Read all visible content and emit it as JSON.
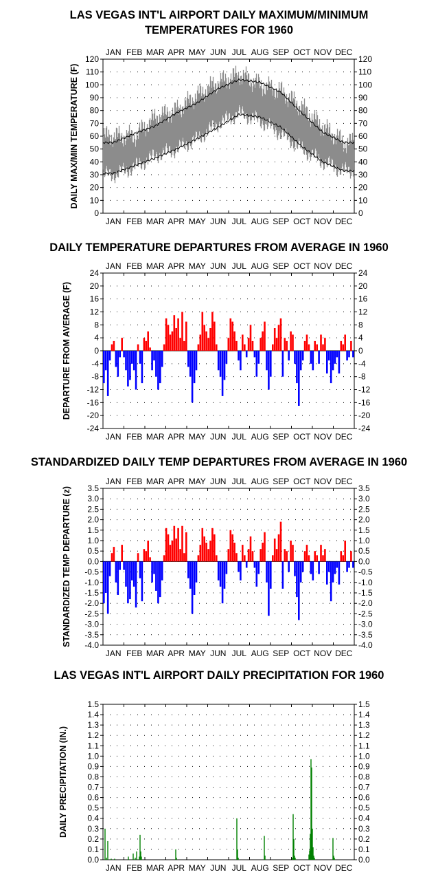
{
  "months": [
    "JAN",
    "FEB",
    "MAR",
    "APR",
    "MAY",
    "JUN",
    "JUL",
    "AUG",
    "SEP",
    "OCT",
    "NOV",
    "DEC"
  ],
  "panels": {
    "temps": {
      "title_line1": "LAS VEGAS INT'L AIRPORT DAILY MAXIMUM/MINIMUM",
      "title_line2": "TEMPERATURES FOR 1960",
      "ylabel": "DAILY MAX/MIN TEMPERATURE (F)"
    },
    "departures": {
      "title": "DAILY TEMPERATURE DEPARTURES FROM AVERAGE IN 1960",
      "ylabel": "DEPARTURE FROM AVERAGE (F)"
    },
    "standardized": {
      "title": "STANDARDIZED DAILY TEMP DEPARTURES FROM AVERAGE IN 1960",
      "ylabel": "STANDARDIZED TEMP DEPARTURE (z)"
    },
    "precip": {
      "title": "LAS VEGAS INT'L AIRPORT DAILY PRECIPITATION FOR 1960",
      "ylabel": "DAILY PRECIPITATION (IN.)"
    }
  },
  "colors": {
    "range": "#8c8c8c",
    "normal_line": "#000000",
    "positive": "#ff0000",
    "negative": "#0000ff",
    "precip": "#008000",
    "grid": "#000000"
  },
  "chart_data": [
    {
      "type": "area",
      "title": "LAS VEGAS INT'L AIRPORT DAILY MAXIMUM/MINIMUM TEMPERATURES FOR 1960",
      "ylabel": "DAILY MAX/MIN TEMPERATURE (F)",
      "ylim": [
        0,
        120
      ],
      "yticks": [
        0,
        10,
        20,
        30,
        40,
        50,
        60,
        70,
        80,
        90,
        100,
        110,
        120
      ],
      "x_unit": "month (monthly approximations)",
      "categories": [
        "JAN",
        "FEB",
        "MAR",
        "APR",
        "MAY",
        "JUN",
        "JUL",
        "AUG",
        "SEP",
        "OCT",
        "NOV",
        "DEC"
      ],
      "series": [
        {
          "values": [
            55,
            62,
            68,
            78,
            86,
            97,
            104,
            102,
            94,
            78,
            63,
            55
          ]
        },
        {
          "values": [
            31,
            37,
            43,
            50,
            58,
            67,
            77,
            75,
            67,
            52,
            40,
            33
          ]
        },
        {
          "values": [
            60,
            60,
            75,
            80,
            92,
            102,
            108,
            100,
            95,
            82,
            67,
            55
          ]
        },
        {
          "values": [
            30,
            36,
            45,
            50,
            58,
            70,
            78,
            72,
            62,
            50,
            40,
            33
          ]
        }
      ],
      "grid": true
    },
    {
      "type": "bar",
      "title": "DAILY TEMPERATURE DEPARTURES FROM AVERAGE IN 1960",
      "ylabel": "DEPARTURE FROM AVERAGE (F)",
      "ylim": [
        -24,
        24
      ],
      "yticks": [
        -24,
        -20,
        -16,
        -12,
        -8,
        -4,
        0,
        4,
        8,
        12,
        16,
        20,
        24
      ],
      "approx_daily_values": [
        -10,
        -6,
        -14,
        -3,
        2,
        3,
        -5,
        -8,
        -2,
        4,
        -2,
        -6,
        -11,
        -9,
        -4,
        -6,
        -12,
        2,
        -4,
        -10,
        4,
        3,
        6,
        1,
        -6,
        -3,
        -8,
        -12,
        -10,
        -5,
        2,
        10,
        8,
        5,
        6,
        11,
        7,
        10,
        4,
        12,
        3,
        9,
        -5,
        -8,
        -16,
        -10,
        -6,
        2,
        5,
        12,
        8,
        6,
        4,
        7,
        12,
        9,
        2,
        -6,
        -8,
        -14,
        -9,
        -4,
        4,
        10,
        9,
        6,
        3,
        -3,
        -6,
        5,
        2,
        -2,
        4,
        8,
        3,
        -2,
        -8,
        -4,
        4,
        6,
        9,
        -6,
        -12,
        -8,
        2,
        7,
        4,
        8,
        10,
        -8,
        4,
        3,
        -3,
        6,
        5,
        -4,
        -10,
        -17,
        -6,
        -3,
        3,
        5,
        2,
        -4,
        -6,
        3,
        2,
        -4,
        5,
        2,
        4,
        -7,
        -3,
        -10,
        -6,
        -4,
        -2,
        -7,
        3,
        2,
        5,
        -3,
        -2,
        3,
        -2
      ],
      "grid": true
    },
    {
      "type": "bar",
      "title": "STANDARDIZED DAILY TEMP DEPARTURES FROM AVERAGE IN 1960",
      "ylabel": "STANDARDIZED TEMP DEPARTURE (z)",
      "ylim": [
        -4.0,
        3.5
      ],
      "yticks": [
        -4.0,
        -3.5,
        -3.0,
        -2.5,
        -2.0,
        -1.5,
        -1.0,
        -0.5,
        0.0,
        0.5,
        1.0,
        1.5,
        2.0,
        2.5,
        3.0,
        3.5
      ],
      "approx_daily_values": [
        -2,
        -1.5,
        -2.5,
        -0.7,
        0.4,
        0.7,
        -1,
        -1.6,
        -0.4,
        0.8,
        -0.4,
        -1.2,
        -2,
        -1.8,
        -0.9,
        -1.2,
        -2.2,
        0.4,
        -0.8,
        -1.9,
        0.6,
        0.5,
        1,
        0.2,
        -1,
        -0.6,
        -1.4,
        -2,
        -1.7,
        -0.9,
        0.3,
        1.6,
        1.3,
        0.8,
        1,
        1.7,
        1.1,
        1.6,
        0.6,
        1.7,
        0.4,
        1.4,
        -0.8,
        -1.3,
        -2.5,
        -1.6,
        -1,
        0.3,
        0.8,
        1.6,
        1.2,
        0.9,
        0.6,
        1,
        1.6,
        1.3,
        0.3,
        -0.9,
        -1.2,
        -2,
        -1.3,
        -0.6,
        0.6,
        1.5,
        1.3,
        0.9,
        0.4,
        -0.5,
        -0.9,
        0.8,
        0.3,
        -0.3,
        0.6,
        1.2,
        0.5,
        -0.3,
        -1.2,
        -0.6,
        0.6,
        0.9,
        1.4,
        -1,
        -2.6,
        -1.3,
        0.3,
        1.1,
        0.6,
        1.3,
        1.9,
        -1.3,
        0.6,
        0.5,
        -0.5,
        1,
        0.8,
        -0.7,
        -1.7,
        -2.8,
        -1,
        -0.5,
        0.5,
        0.8,
        0.3,
        -0.6,
        -0.9,
        0.5,
        0.3,
        -0.6,
        0.8,
        0.3,
        0.6,
        -1.1,
        -0.5,
        -1.9,
        -1,
        -0.6,
        -0.3,
        -1.1,
        0.5,
        0.3,
        1,
        -0.5,
        -0.3,
        0.5,
        -0.3
      ],
      "grid": true
    },
    {
      "type": "bar",
      "title": "LAS VEGAS INT'L AIRPORT DAILY PRECIPITATION FOR 1960",
      "ylabel": "DAILY PRECIPITATION (IN.)",
      "ylim": [
        0,
        1.5
      ],
      "yticks": [
        0.0,
        0.1,
        0.2,
        0.3,
        0.4,
        0.5,
        0.6,
        0.7,
        0.8,
        0.9,
        1.0,
        1.1,
        1.2,
        1.3,
        1.4,
        1.5
      ],
      "x_unit": "day of year",
      "x": [
        3,
        5,
        7,
        12,
        17,
        37,
        44,
        47,
        49,
        53,
        54,
        55,
        56,
        106,
        107,
        195,
        196,
        197,
        235,
        236,
        276,
        277,
        278,
        279,
        280,
        300,
        301,
        302,
        303,
        304,
        305,
        306,
        307,
        308,
        335,
        336,
        337
      ],
      "values": [
        0.3,
        0.02,
        0.18,
        0.01,
        0.01,
        0.03,
        0.06,
        0.02,
        0.08,
        0.03,
        0.24,
        0.08,
        0.03,
        0.1,
        0.02,
        0.4,
        0.1,
        0.02,
        0.23,
        0.04,
        0.02,
        0.44,
        0.2,
        0.04,
        0.02,
        0.05,
        0.09,
        0.25,
        0.97,
        0.89,
        0.3,
        0.12,
        0.04,
        0.02,
        0.21,
        0.04,
        0.02
      ],
      "grid": true
    }
  ]
}
